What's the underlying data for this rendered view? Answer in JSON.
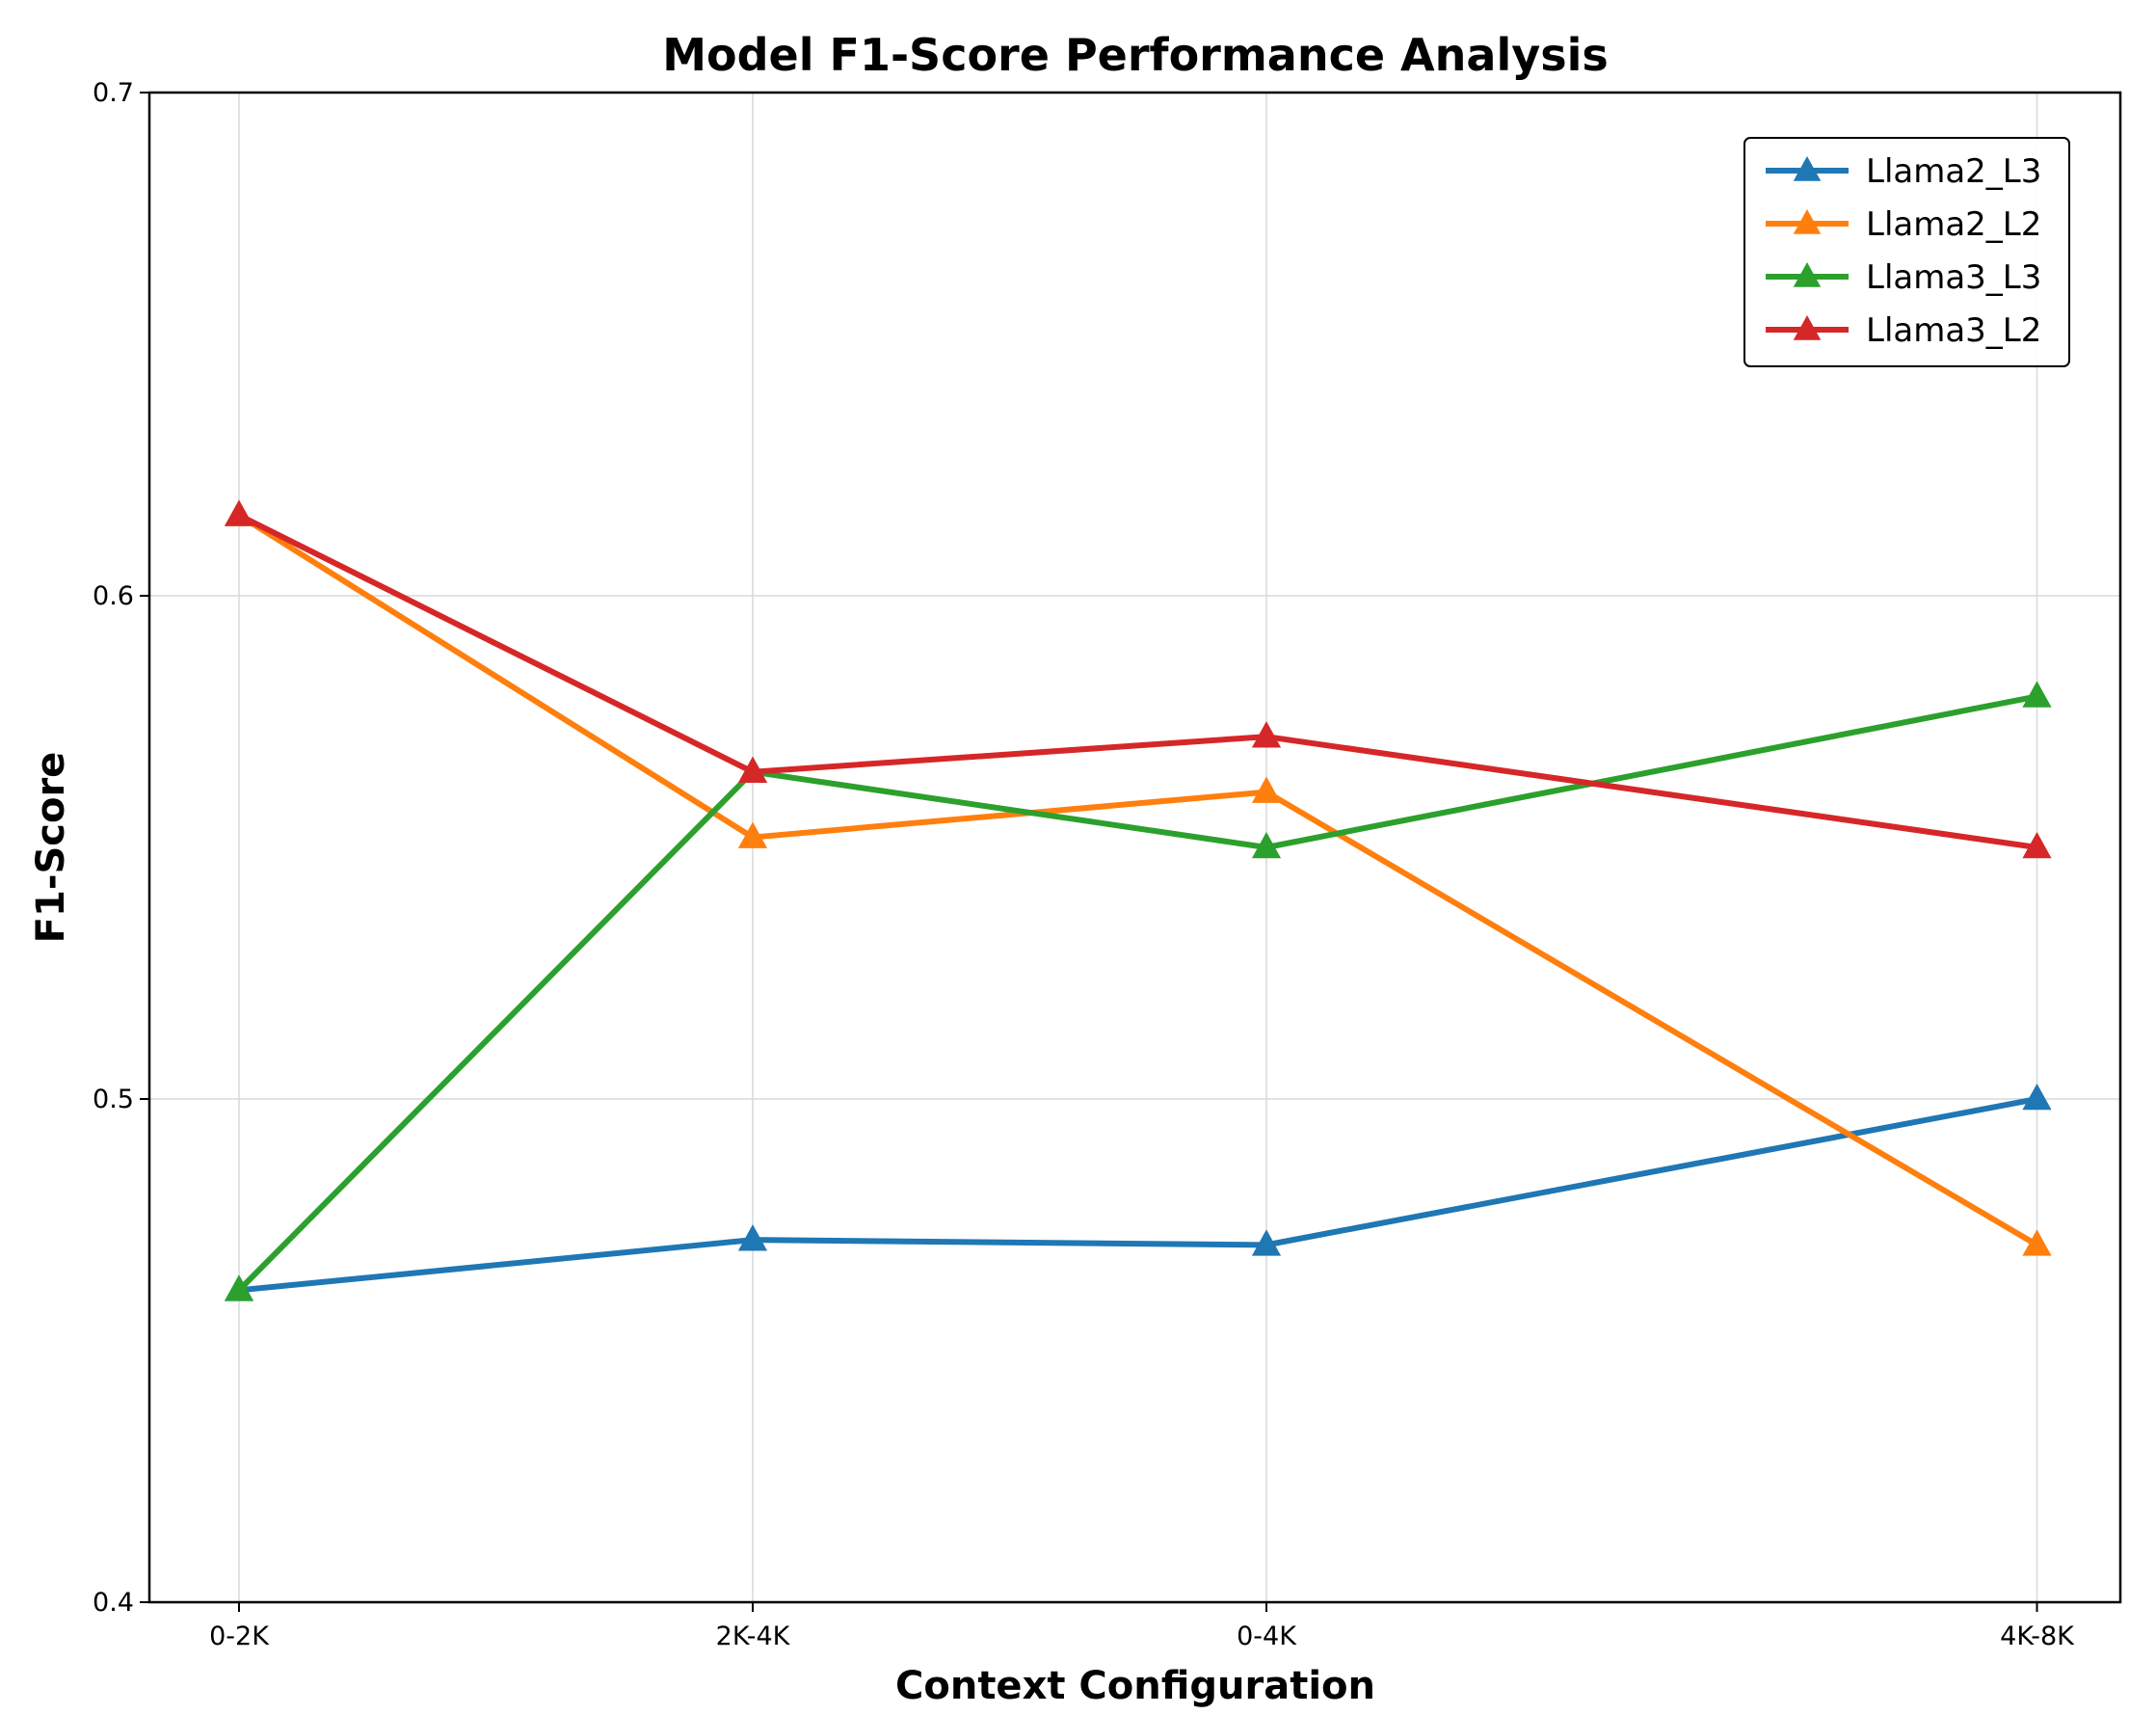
{
  "chart_data": {
    "type": "line",
    "title": "Model F1-Score Performance Analysis",
    "xlabel": "Context Configuration",
    "ylabel": "F1-Score",
    "categories": [
      "0-2K",
      "2K-4K",
      "0-4K",
      "4K-8K"
    ],
    "x_positions": [
      0,
      1,
      2,
      3.5
    ],
    "ylim": [
      0.4,
      0.7
    ],
    "yticks": [
      0.4,
      0.5,
      0.6,
      0.7
    ],
    "ytick_labels": [
      "0.4",
      "0.5",
      "0.6",
      "0.7"
    ],
    "grid": true,
    "legend_position": "top-right",
    "series": [
      {
        "name": "Llama2_L3",
        "color": "#1f77b4",
        "values": [
          0.462,
          0.472,
          0.471,
          0.5
        ]
      },
      {
        "name": "Llama2_L2",
        "color": "#ff7f0e",
        "values": [
          0.616,
          0.552,
          0.561,
          0.471
        ]
      },
      {
        "name": "Llama3_L3",
        "color": "#2ca02c",
        "values": [
          0.462,
          0.565,
          0.55,
          0.58
        ]
      },
      {
        "name": "Llama3_L2",
        "color": "#d62728",
        "values": [
          0.616,
          0.565,
          0.572,
          0.55
        ]
      }
    ]
  }
}
